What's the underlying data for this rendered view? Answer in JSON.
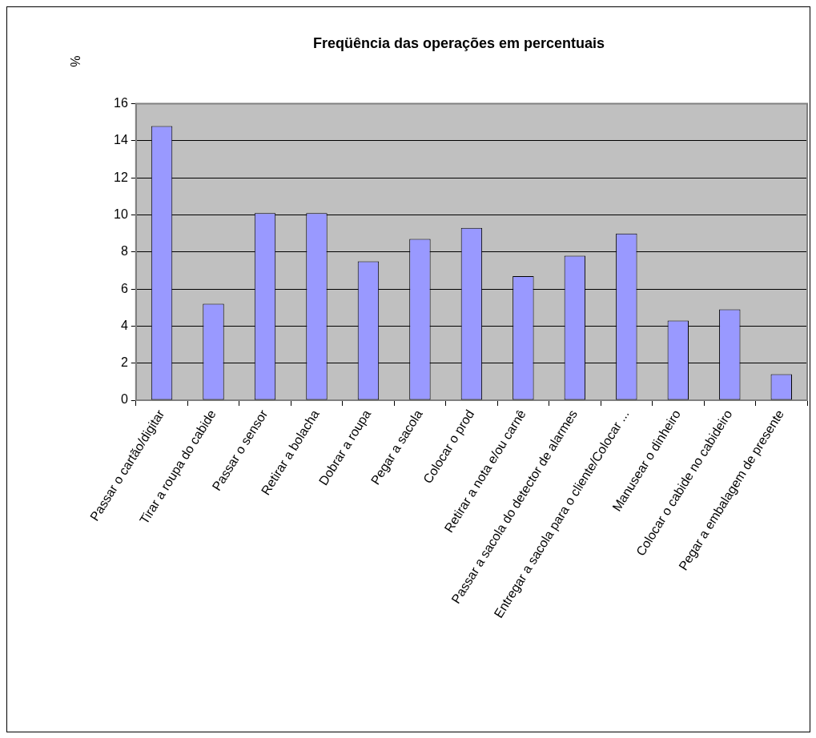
{
  "chart_data": {
    "type": "bar",
    "title": "Freqüência das operações em percentuais",
    "ylabel": "%",
    "categories": [
      "Passar o cartão/digitar",
      "Tirar a roupa do cabide",
      "Passar o sensor",
      "Retirar a bolacha",
      "Dobrar a roupa",
      "Pegar a sacola",
      "Colocar o prod",
      "Retirar a nota e/ou carnê",
      "Passar a sacola do detector de alarmes",
      "Entregar a sacola para o cliente/Colocar ...",
      "Manusear o dinheiro",
      "Colocar o cabide no cabideiro",
      "Pegar a embalagem de presente"
    ],
    "values": [
      14.8,
      5.2,
      10.1,
      10.1,
      7.5,
      8.7,
      9.3,
      6.7,
      7.8,
      9.0,
      4.3,
      4.9,
      1.4
    ],
    "color": "#9999ff",
    "ylim": [
      0,
      16
    ],
    "yticks": [
      0,
      2,
      4,
      6,
      8,
      10,
      12,
      14,
      16
    ],
    "grid": "y",
    "legend": false
  }
}
